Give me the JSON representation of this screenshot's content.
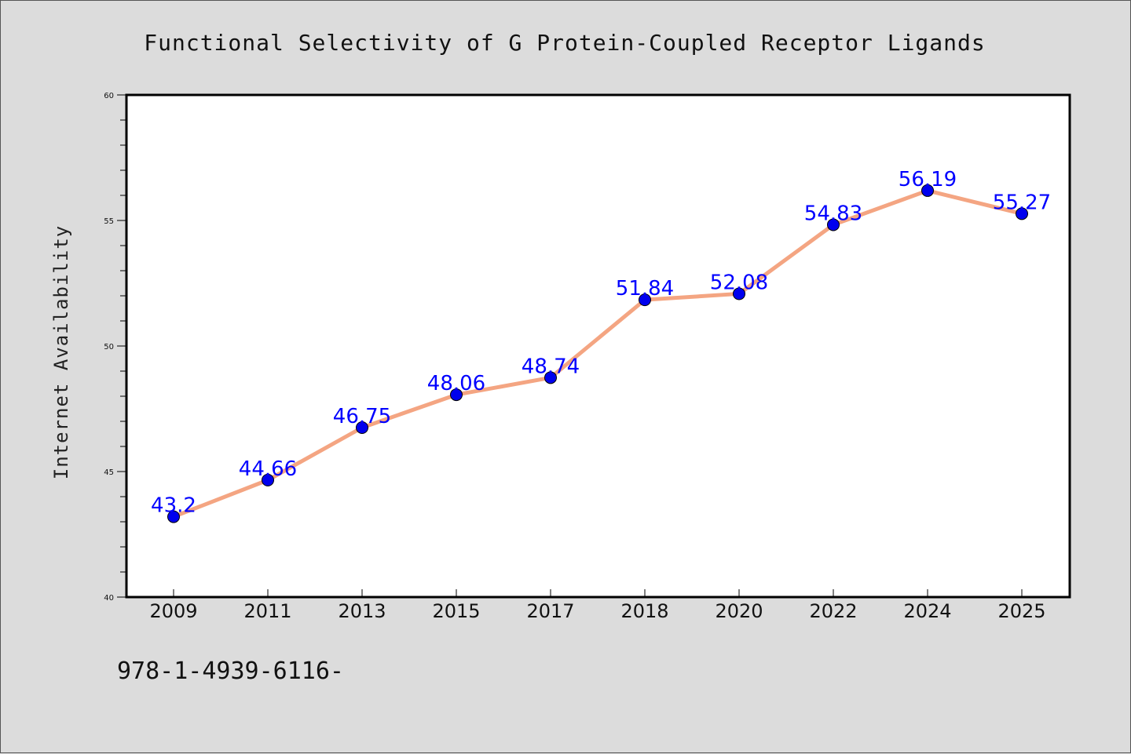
{
  "chart_data": {
    "type": "line",
    "title": "Functional Selectivity of G Protein-Coupled Receptor Ligands",
    "xlabel": "",
    "ylabel": "Internet Availability",
    "categories": [
      "2009",
      "2011",
      "2013",
      "2015",
      "2017",
      "2018",
      "2020",
      "2022",
      "2024",
      "2025"
    ],
    "values": [
      43.2,
      44.66,
      46.75,
      48.06,
      48.74,
      51.84,
      52.08,
      54.83,
      56.19,
      55.27
    ],
    "data_labels": [
      "43.2",
      "44.66",
      "46.75",
      "48.06",
      "48.74",
      "51.84",
      "52.08",
      "54.83",
      "56.19",
      "55.27"
    ],
    "ylim": [
      40,
      60
    ],
    "yticks": [
      "40",
      "45",
      "50",
      "55",
      "60"
    ],
    "grid": false,
    "legend": "none",
    "colors": {
      "line": "#f4a582",
      "marker": "#0000ee",
      "label": "#0000ff",
      "background": "#dcdcdc",
      "plot_background": "#ffffff"
    }
  },
  "footnote": "978-1-4939-6116-"
}
